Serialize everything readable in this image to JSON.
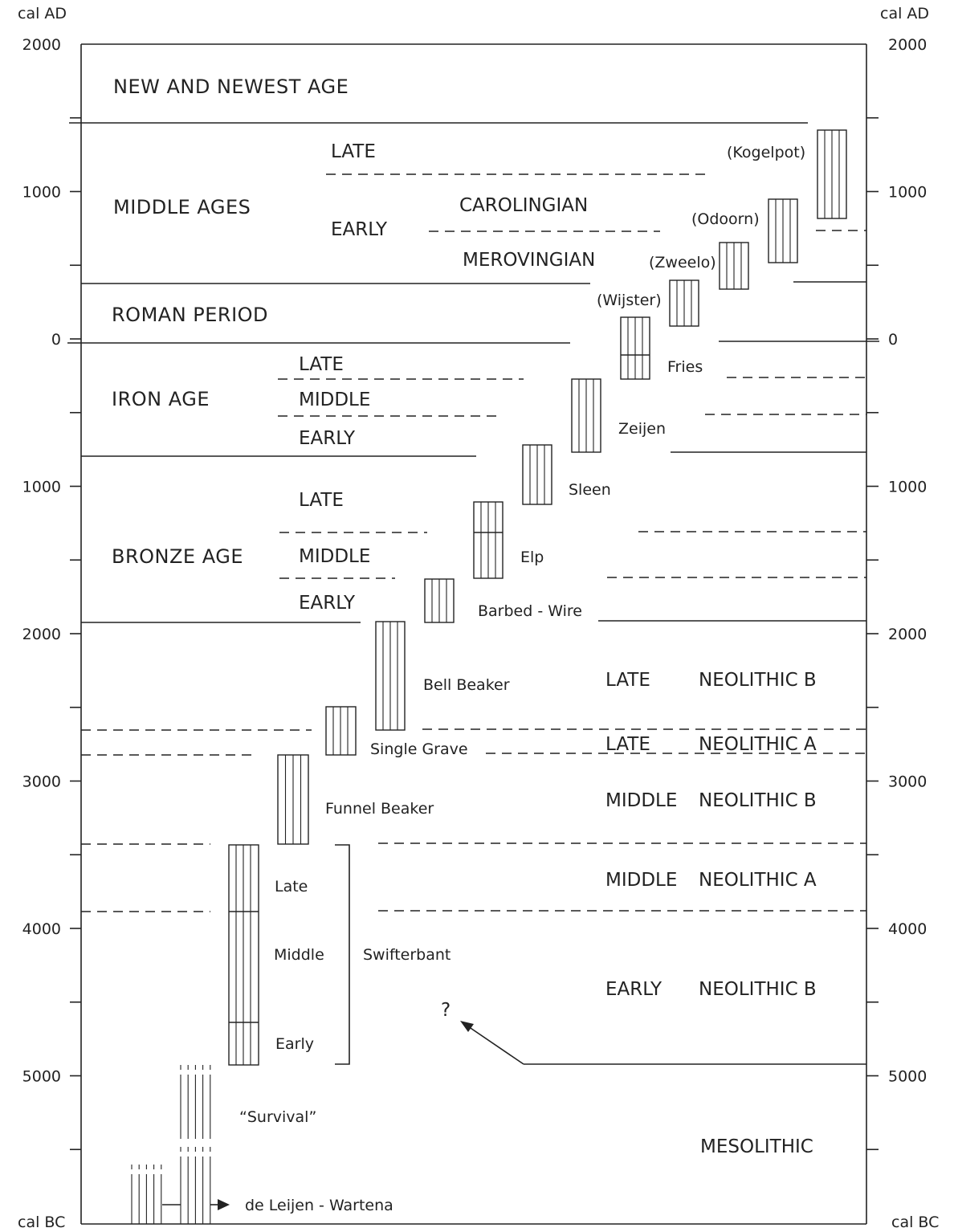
{
  "axis": {
    "top_left_unit": "cal AD",
    "top_right_unit": "cal AD",
    "bottom_left_unit": "cal BC",
    "bottom_right_unit": "cal BC",
    "ticks": [
      {
        "label": "2000",
        "value": 2000
      },
      {
        "label": "1000",
        "value": 1000
      },
      {
        "label": "0",
        "value": 0
      },
      {
        "label": "1000",
        "value": -1000
      },
      {
        "label": "2000",
        "value": -2000
      },
      {
        "label": "3000",
        "value": -3000
      },
      {
        "label": "4000",
        "value": -4000
      },
      {
        "label": "5000",
        "value": -5000
      }
    ],
    "range": [
      2000,
      -5800
    ]
  },
  "periods": {
    "new_age": "NEW AND NEWEST AGE",
    "middle_ages": "MIDDLE AGES",
    "ma_late": "LATE",
    "ma_early": "EARLY",
    "carolingian": "CAROLINGIAN",
    "merovingian": "MEROVINGIAN",
    "roman": "ROMAN PERIOD",
    "iron_age": "IRON AGE",
    "ia_late": "LATE",
    "ia_middle": "MIDDLE",
    "ia_early": "EARLY",
    "bronze_age": "BRONZE AGE",
    "ba_late": "LATE",
    "ba_middle": "MIDDLE",
    "ba_early": "EARLY",
    "ln_b_1": "LATE",
    "ln_b_2": "NEOLITHIC B",
    "ln_a_1": "LATE",
    "ln_a_2": "NEOLITHIC A",
    "mn_b_1": "MIDDLE",
    "mn_b_2": "NEOLITHIC B",
    "mn_a_1": "MIDDLE",
    "mn_a_2": "NEOLITHIC A",
    "en_b_1": "EARLY",
    "en_b_2": "NEOLITHIC B",
    "mesolithic": "MESOLITHIC"
  },
  "cultures": {
    "kogelpot": "(Kogelpot)",
    "odoorn": "(Odoorn)",
    "zweelo": "(Zweelo)",
    "wijster": "(Wijster)",
    "fries": "Fries",
    "zeijen": "Zeijen",
    "sleen": "Sleen",
    "elp": "Elp",
    "barbed_wire": "Barbed - Wire",
    "bell_beaker": "Bell Beaker",
    "single_grave": "Single Grave",
    "funnel_beaker": "Funnel Beaker",
    "swifterbant": "Swifterbant",
    "sw_late": "Late",
    "sw_middle": "Middle",
    "sw_early": "Early",
    "question": "?",
    "survival": "“Survival”",
    "de_leijen": "de Leijen - Wartena"
  }
}
